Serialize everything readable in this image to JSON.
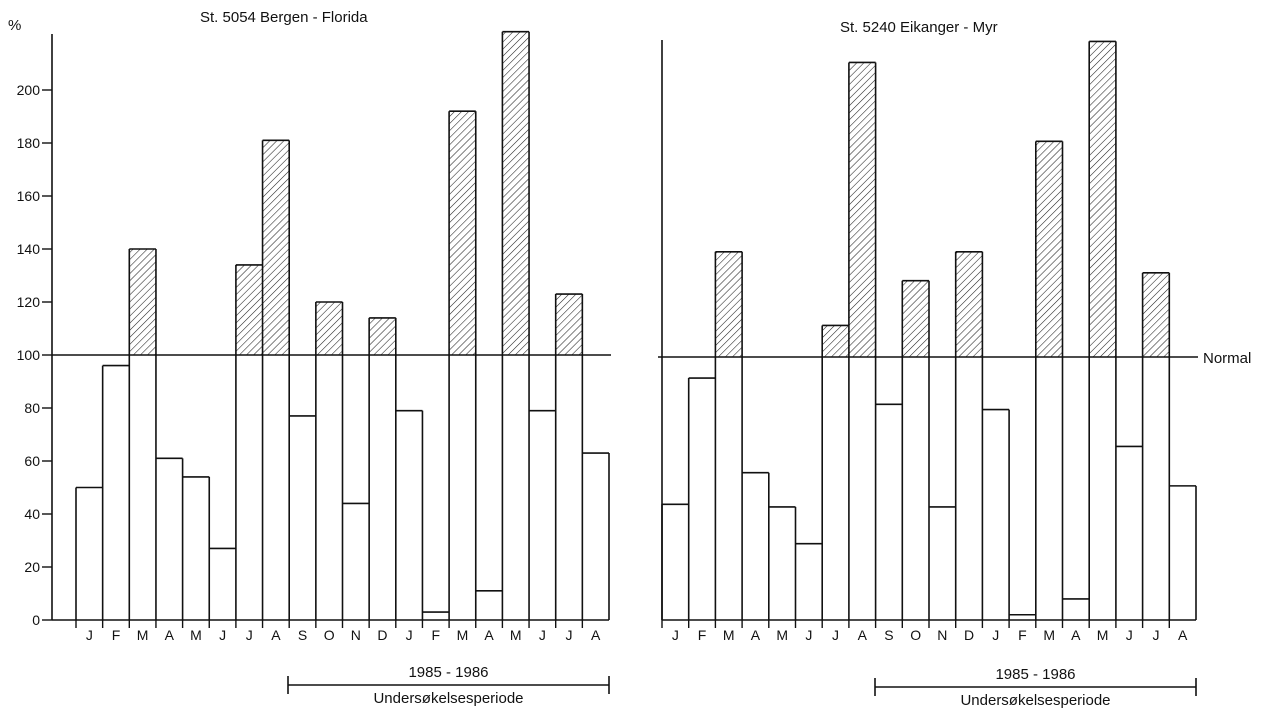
{
  "y_axis_unit": "%",
  "normal_label": "Normal",
  "chart_data": [
    {
      "type": "bar",
      "title": "St. 5054 Bergen - Florida",
      "ylabel": "%",
      "baseline": 100,
      "ylim": [
        0,
        220
      ],
      "yticks": [
        0,
        20,
        40,
        60,
        80,
        100,
        120,
        140,
        160,
        180,
        200
      ],
      "categories": [
        "J",
        "F",
        "M",
        "A",
        "M",
        "J",
        "J",
        "A",
        "S",
        "O",
        "N",
        "D",
        "J",
        "F",
        "M",
        "A",
        "M",
        "J",
        "J",
        "A"
      ],
      "values": [
        50,
        96,
        140,
        61,
        54,
        27,
        134,
        181,
        77,
        120,
        44,
        114,
        79,
        3,
        192,
        11,
        222,
        79,
        123,
        63
      ],
      "period": {
        "years": "1985 - 1986",
        "label": "Undersøkelsesperiode",
        "from_index": 8,
        "to_index": 19
      }
    },
    {
      "type": "bar",
      "title": "St. 5240 Eikanger - Myr",
      "ylabel": "%",
      "baseline": 100,
      "ylim": [
        0,
        220
      ],
      "categories": [
        "J",
        "F",
        "M",
        "A",
        "M",
        "J",
        "J",
        "A",
        "S",
        "O",
        "N",
        "D",
        "J",
        "F",
        "M",
        "A",
        "M",
        "J",
        "J",
        "A"
      ],
      "values": [
        44,
        92,
        140,
        56,
        43,
        29,
        112,
        212,
        82,
        129,
        43,
        140,
        80,
        2,
        182,
        8,
        220,
        66,
        132,
        51
      ],
      "period": {
        "years": "1985 - 1986",
        "label": "Undersøkelsesperiode",
        "from_index": 8,
        "to_index": 19
      }
    }
  ]
}
